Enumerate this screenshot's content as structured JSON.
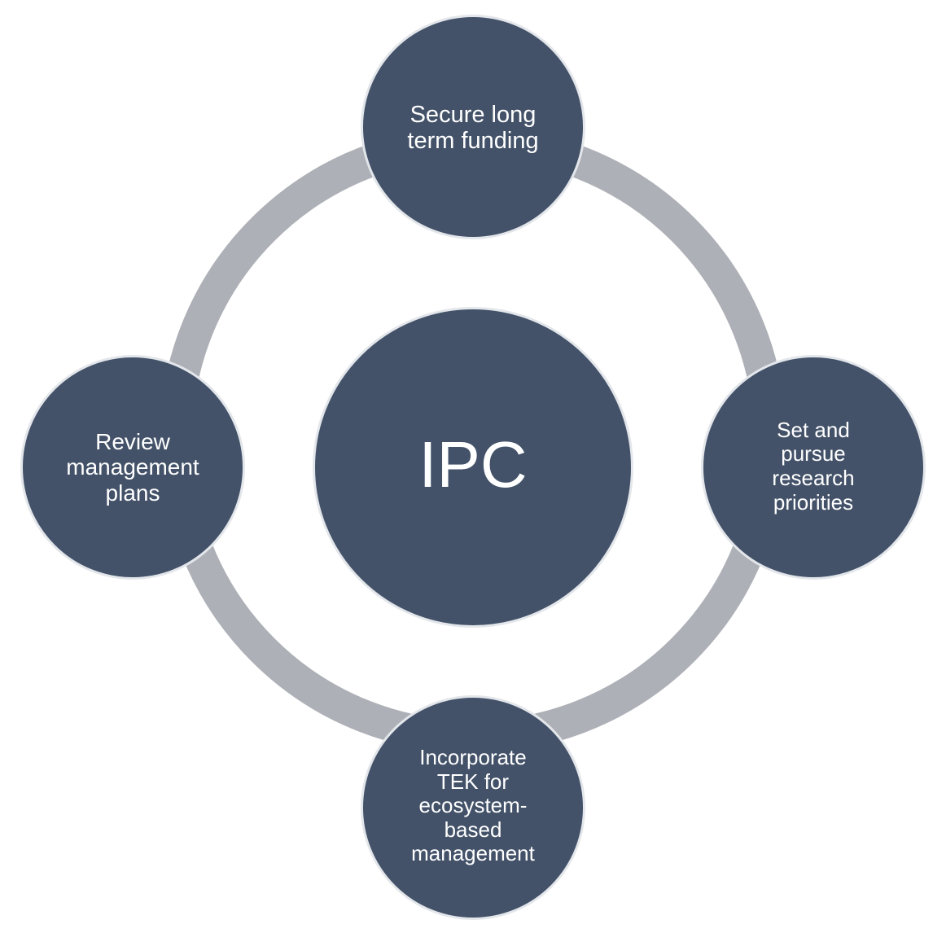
{
  "diagram": {
    "center": {
      "label": "IPC"
    },
    "nodes": {
      "top": {
        "label": "Secure long\nterm funding"
      },
      "right": {
        "label": "Set and\npursue\nresearch\npriorities"
      },
      "bottom": {
        "label": "Incorporate\nTEK for\necosystem-\nbased\nmanagement"
      },
      "left": {
        "label": "Review\nmanagement\nplans"
      }
    }
  },
  "colors": {
    "node_fill": "#435269",
    "node_outline": "#e3e6ea",
    "ring": "#adb0b6",
    "text": "#ffffff",
    "background": "#ffffff"
  }
}
